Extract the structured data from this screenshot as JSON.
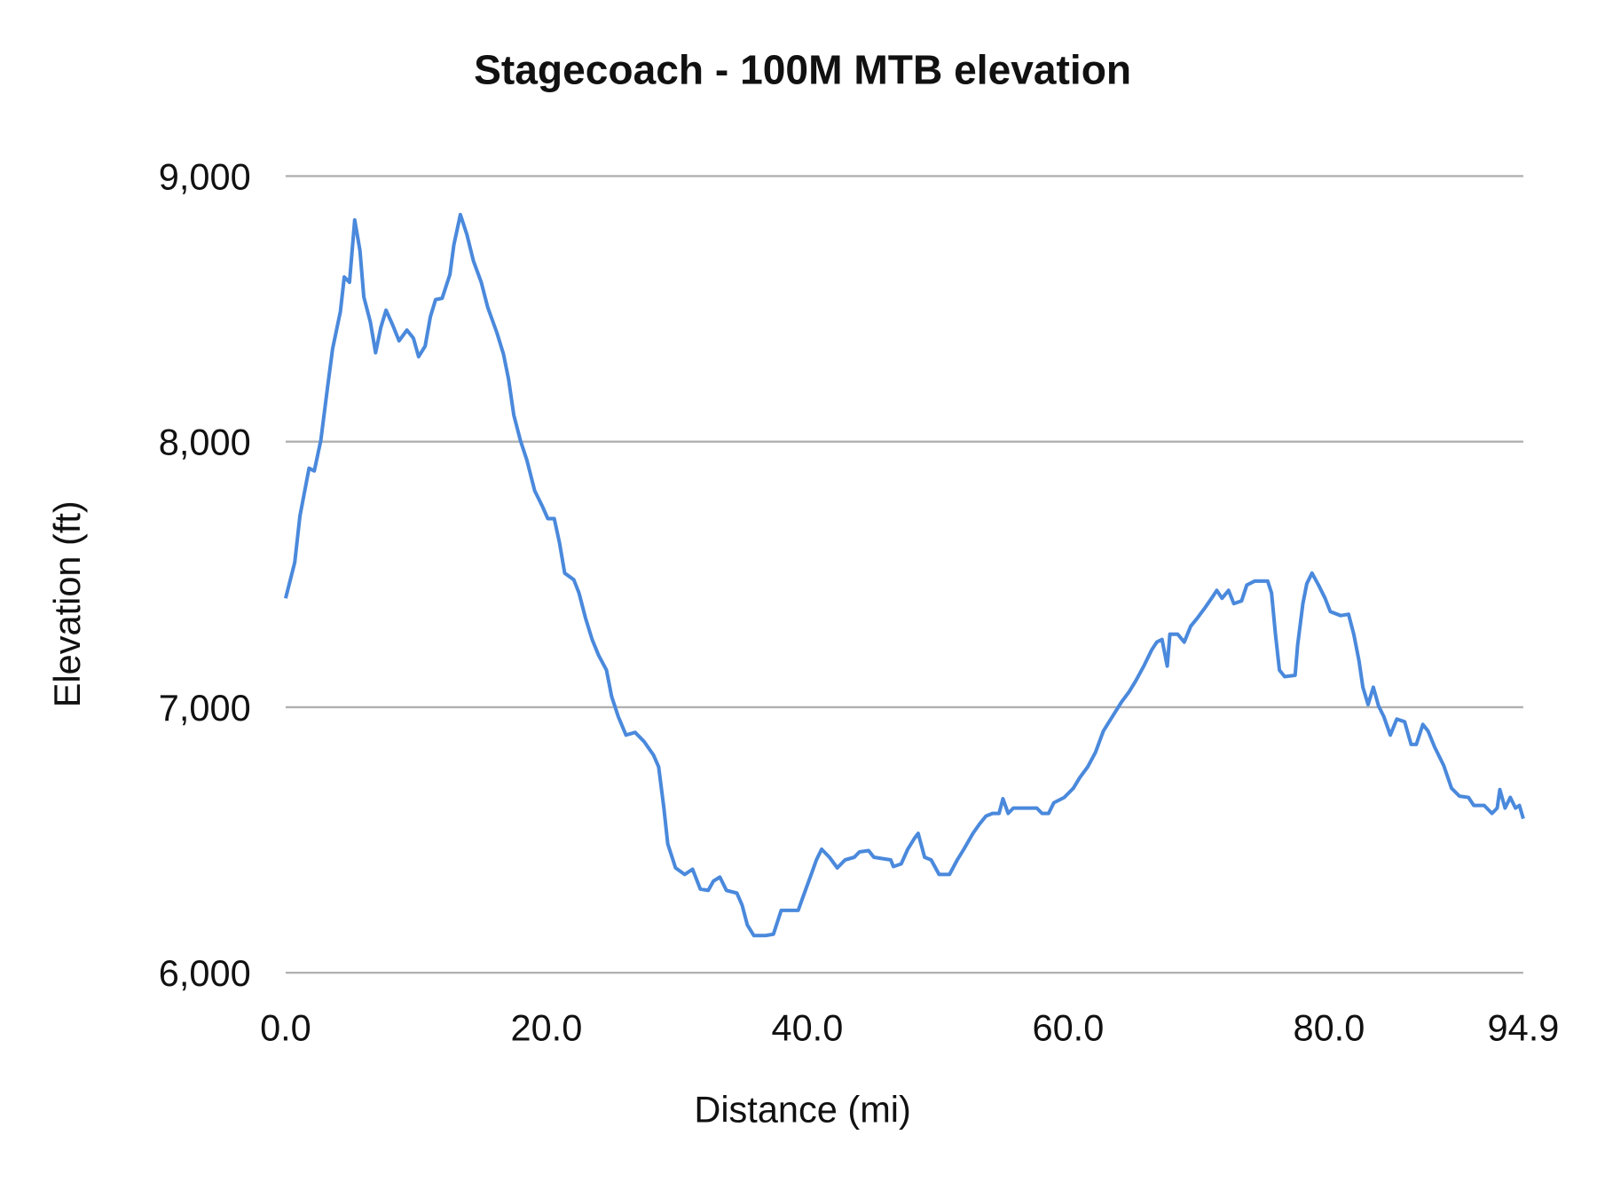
{
  "chart_data": {
    "type": "line",
    "title": "Stagecoach - 100M MTB elevation",
    "xlabel": "Distance (mi)",
    "ylabel": "Elevation (ft)",
    "xlim": [
      0,
      94.9
    ],
    "ylim": [
      6000,
      9000
    ],
    "x_ticks": [
      "0.0",
      "20.0",
      "40.0",
      "60.0",
      "80.0",
      "94.9"
    ],
    "x_tick_values": [
      0,
      20,
      40,
      60,
      80,
      94.9
    ],
    "y_ticks": [
      "6,000",
      "7,000",
      "8,000",
      "9,000"
    ],
    "y_tick_values": [
      6000,
      7000,
      8000,
      9000
    ],
    "grid": "horizontal",
    "legend": "none",
    "line_color": "#4a89dc",
    "grid_color": "#b0b0b0",
    "series": [
      {
        "x": [
          0,
          0.7,
          1.1,
          1.8,
          2.2,
          2.7,
          3.2,
          3.6,
          4.2,
          4.5,
          4.9,
          5.3,
          5.7,
          6.0,
          6.5,
          6.9,
          7.3,
          7.7,
          8.2,
          8.7,
          9.3,
          9.8,
          10.2,
          10.7,
          11.1,
          11.5,
          12.0,
          12.6,
          12.9,
          13.4,
          13.9,
          14.4,
          15.0,
          15.5,
          16.2,
          16.7,
          17.1,
          17.5,
          18.0,
          18.5,
          19.1,
          19.7,
          20.1,
          20.6,
          21.0,
          21.4,
          22.1,
          22.5,
          23.0,
          23.5,
          24.0,
          24.6,
          25.0,
          25.5,
          26.1,
          26.8,
          27.5,
          28.2,
          28.6,
          29.0,
          29.3,
          29.9,
          30.6,
          31.2,
          31.8,
          32.4,
          32.8,
          33.3,
          33.8,
          34.6,
          35.0,
          35.4,
          35.9,
          36.8,
          37.4,
          38.0,
          39.3,
          39.7,
          40.3,
          40.7,
          41.1,
          41.7,
          42.3,
          42.9,
          43.6,
          44.0,
          44.7,
          45.1,
          46.4,
          46.6,
          47.2,
          47.7,
          48.2,
          48.5,
          49.0,
          49.5,
          50.1,
          50.9,
          51.5,
          52.0,
          52.7,
          53.2,
          53.7,
          54.2,
          54.7,
          55.0,
          55.4,
          55.8,
          56.6,
          57.6,
          58.0,
          58.5,
          58.9,
          59.7,
          60.4,
          60.9,
          61.5,
          62.1,
          62.7,
          63.4,
          64.1,
          64.7,
          65.2,
          65.8,
          66.4,
          66.8,
          67.2,
          67.6,
          67.8,
          68.4,
          68.9,
          69.4,
          69.9,
          70.5,
          71.0,
          71.4,
          71.8,
          72.3,
          72.7,
          73.3,
          73.7,
          74.3,
          74.8,
          75.3,
          75.6,
          75.9,
          76.2,
          76.6,
          77.4,
          77.6,
          78.0,
          78.3,
          78.7,
          79.2,
          79.7,
          80.1,
          80.9,
          81.5,
          81.9,
          82.3,
          82.6,
          83.0,
          83.4,
          83.8,
          84.2,
          84.7,
          85.2,
          85.8,
          86.3,
          86.7,
          87.2,
          87.6,
          88.1,
          88.8,
          89.4,
          90.0,
          90.7,
          91.1,
          91.9,
          92.5,
          92.9,
          93.1,
          93.5,
          93.9,
          94.3,
          94.6,
          94.9
        ],
        "y": [
          7410,
          7545,
          7720,
          7900,
          7890,
          8005,
          8200,
          8350,
          8490,
          8620,
          8600,
          8835,
          8720,
          8545,
          8450,
          8335,
          8430,
          8495,
          8440,
          8380,
          8420,
          8390,
          8320,
          8360,
          8470,
          8535,
          8540,
          8630,
          8740,
          8855,
          8780,
          8680,
          8600,
          8505,
          8410,
          8330,
          8235,
          8100,
          8005,
          7930,
          7815,
          7755,
          7710,
          7710,
          7620,
          7505,
          7480,
          7430,
          7335,
          7255,
          7195,
          7140,
          7040,
          6965,
          6895,
          6905,
          6870,
          6820,
          6775,
          6620,
          6485,
          6395,
          6370,
          6390,
          6315,
          6310,
          6345,
          6360,
          6310,
          6300,
          6255,
          6180,
          6140,
          6140,
          6145,
          6235,
          6235,
          6290,
          6370,
          6425,
          6465,
          6435,
          6395,
          6425,
          6435,
          6455,
          6460,
          6435,
          6425,
          6400,
          6410,
          6465,
          6505,
          6525,
          6435,
          6425,
          6370,
          6370,
          6425,
          6465,
          6525,
          6560,
          6590,
          6600,
          6600,
          6655,
          6600,
          6620,
          6620,
          6620,
          6600,
          6600,
          6640,
          6660,
          6695,
          6735,
          6775,
          6830,
          6910,
          6965,
          7020,
          7060,
          7100,
          7155,
          7215,
          7245,
          7255,
          7155,
          7275,
          7275,
          7245,
          7305,
          7335,
          7375,
          7410,
          7440,
          7410,
          7440,
          7390,
          7400,
          7460,
          7475,
          7475,
          7475,
          7430,
          7275,
          7140,
          7115,
          7120,
          7235,
          7390,
          7465,
          7505,
          7460,
          7410,
          7360,
          7345,
          7350,
          7275,
          7175,
          7075,
          7010,
          7075,
          7005,
          6965,
          6895,
          6955,
          6945,
          6860,
          6860,
          6935,
          6910,
          6850,
          6780,
          6695,
          6665,
          6660,
          6630,
          6630,
          6600,
          6620,
          6690,
          6620,
          6660,
          6620,
          6630,
          6580
        ]
      }
    ]
  }
}
